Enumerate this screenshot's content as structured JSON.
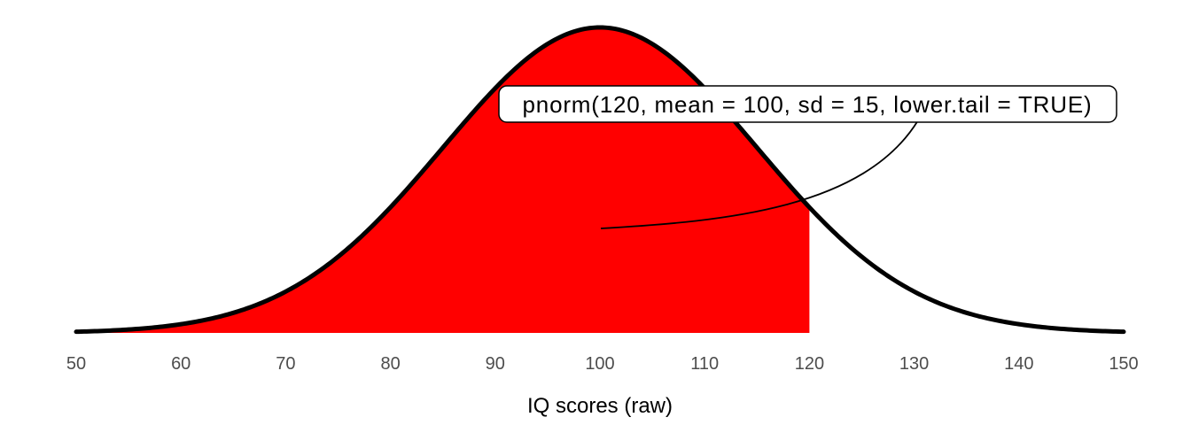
{
  "figure": {
    "background_color": "#FFFFFF"
  },
  "chart_data": {
    "type": "area",
    "distribution": "normal",
    "mean": 100,
    "sd": 15,
    "shade_from": 50,
    "shade_to": 120,
    "lower_tail": true,
    "x_domain": [
      50,
      150
    ],
    "x_ticks": [
      50,
      60,
      70,
      80,
      90,
      100,
      110,
      120,
      130,
      140,
      150
    ],
    "xlabel": "IQ scores (raw)",
    "ylabel": "",
    "grid": "off",
    "legend": "none",
    "y_axis_shown": false,
    "annotation": {
      "label": "pnorm(120, mean = 100, sd = 15, lower.tail = TRUE)"
    },
    "colors": {
      "shade_fill": "#FF0000",
      "curve_stroke": "#000000",
      "tick_label": "#4D4D4D",
      "axis_title": "#000000",
      "annotation_background": "#FFFFFF",
      "annotation_border": "#000000",
      "leader_line": "#000000"
    }
  }
}
